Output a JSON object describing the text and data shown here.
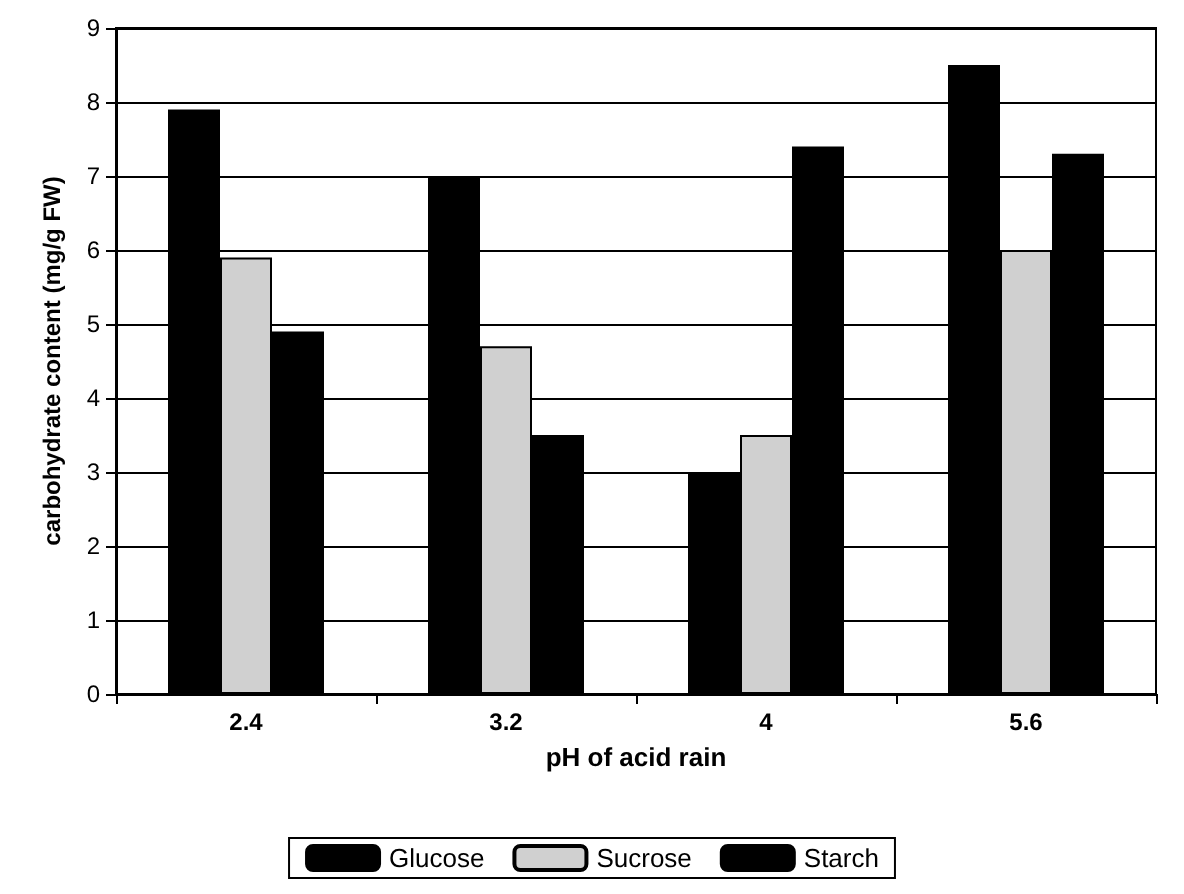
{
  "chart_data": {
    "type": "bar",
    "xlabel": "pH of acid rain",
    "ylabel": "carbohydrate content (mg/g FW)",
    "categories": [
      "2.4",
      "3.2",
      "4",
      "5.6"
    ],
    "series": [
      {
        "name": "Glucose",
        "color": "#000000",
        "values": [
          7.9,
          7.0,
          3.0,
          8.5
        ]
      },
      {
        "name": "Sucrose",
        "color": "#d0d0d0",
        "values": [
          5.9,
          4.7,
          3.5,
          6.0
        ]
      },
      {
        "name": "Starch",
        "color": "#000000",
        "values": [
          4.9,
          3.5,
          7.4,
          7.3
        ]
      }
    ],
    "ylim": [
      0,
      9
    ],
    "yticks": [
      0,
      1,
      2,
      3,
      4,
      5,
      6,
      7,
      8,
      9
    ],
    "grid": "y",
    "legend": "bottom"
  }
}
